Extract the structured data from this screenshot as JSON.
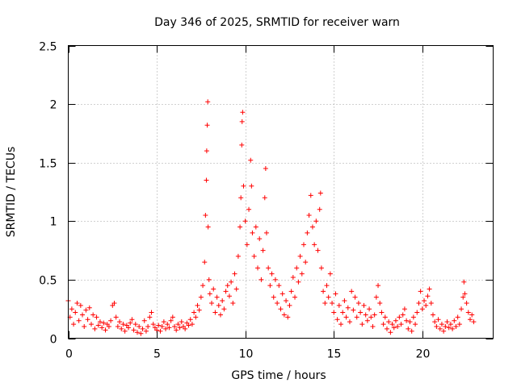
{
  "chart_data": {
    "type": "scatter",
    "title": "Day 346 of 2025, SRMTID for receiver warn",
    "xlabel": "GPS time / hours",
    "ylabel": "SRMTID / TECUs",
    "xlim": [
      0,
      24
    ],
    "ylim": [
      0,
      2.5
    ],
    "xticks": [
      0,
      5,
      10,
      15,
      20
    ],
    "xtick_labels": [
      "0",
      "5",
      "10",
      "15",
      "20"
    ],
    "yticks": [
      0,
      0.5,
      1,
      1.5,
      2,
      2.5
    ],
    "ytick_labels": [
      "0",
      "0.5",
      "1",
      "1.5",
      "2",
      "2.5"
    ],
    "grid": true,
    "marker": "+",
    "series_color": "#ff0000",
    "series": [
      {
        "name": "SRMTID",
        "points": [
          [
            0.0,
            0.32
          ],
          [
            0.1,
            0.18
          ],
          [
            0.2,
            0.25
          ],
          [
            0.3,
            0.12
          ],
          [
            0.4,
            0.22
          ],
          [
            0.5,
            0.3
          ],
          [
            0.6,
            0.15
          ],
          [
            0.7,
            0.28
          ],
          [
            0.8,
            0.2
          ],
          [
            0.9,
            0.1
          ],
          [
            1.0,
            0.24
          ],
          [
            1.1,
            0.16
          ],
          [
            1.2,
            0.26
          ],
          [
            1.3,
            0.12
          ],
          [
            1.4,
            0.2
          ],
          [
            1.5,
            0.08
          ],
          [
            1.6,
            0.18
          ],
          [
            1.7,
            0.11
          ],
          [
            1.8,
            0.14
          ],
          [
            1.9,
            0.09
          ],
          [
            2.0,
            0.13
          ],
          [
            2.1,
            0.07
          ],
          [
            2.2,
            0.12
          ],
          [
            2.3,
            0.1
          ],
          [
            2.4,
            0.15
          ],
          [
            2.5,
            0.28
          ],
          [
            2.6,
            0.3
          ],
          [
            2.7,
            0.18
          ],
          [
            2.8,
            0.1
          ],
          [
            2.9,
            0.14
          ],
          [
            3.0,
            0.08
          ],
          [
            3.1,
            0.12
          ],
          [
            3.2,
            0.06
          ],
          [
            3.3,
            0.11
          ],
          [
            3.4,
            0.09
          ],
          [
            3.5,
            0.13
          ],
          [
            3.6,
            0.16
          ],
          [
            3.7,
            0.07
          ],
          [
            3.8,
            0.12
          ],
          [
            3.9,
            0.05
          ],
          [
            4.0,
            0.1
          ],
          [
            4.1,
            0.04
          ],
          [
            4.2,
            0.08
          ],
          [
            4.3,
            0.15
          ],
          [
            4.4,
            0.06
          ],
          [
            4.5,
            0.1
          ],
          [
            4.6,
            0.18
          ],
          [
            4.7,
            0.22
          ],
          [
            4.8,
            0.12
          ],
          [
            4.9,
            0.09
          ],
          [
            5.0,
            0.07
          ],
          [
            5.1,
            0.11
          ],
          [
            5.2,
            0.06
          ],
          [
            5.3,
            0.1
          ],
          [
            5.4,
            0.14
          ],
          [
            5.5,
            0.08
          ],
          [
            5.6,
            0.12
          ],
          [
            5.7,
            0.09
          ],
          [
            5.8,
            0.15
          ],
          [
            5.9,
            0.18
          ],
          [
            6.0,
            0.1
          ],
          [
            6.1,
            0.07
          ],
          [
            6.2,
            0.12
          ],
          [
            6.3,
            0.09
          ],
          [
            6.4,
            0.14
          ],
          [
            6.5,
            0.1
          ],
          [
            6.6,
            0.08
          ],
          [
            6.7,
            0.13
          ],
          [
            6.8,
            0.11
          ],
          [
            6.9,
            0.16
          ],
          [
            7.0,
            0.12
          ],
          [
            7.1,
            0.22
          ],
          [
            7.2,
            0.18
          ],
          [
            7.3,
            0.28
          ],
          [
            7.4,
            0.24
          ],
          [
            7.5,
            0.35
          ],
          [
            7.6,
            0.45
          ],
          [
            7.7,
            0.65
          ],
          [
            7.75,
            1.05
          ],
          [
            7.8,
            1.35
          ],
          [
            7.82,
            1.6
          ],
          [
            7.85,
            1.82
          ],
          [
            7.88,
            2.02
          ],
          [
            7.9,
            0.95
          ],
          [
            7.95,
            0.5
          ],
          [
            8.0,
            0.38
          ],
          [
            8.1,
            0.3
          ],
          [
            8.2,
            0.42
          ],
          [
            8.3,
            0.22
          ],
          [
            8.4,
            0.35
          ],
          [
            8.5,
            0.28
          ],
          [
            8.6,
            0.2
          ],
          [
            8.7,
            0.32
          ],
          [
            8.8,
            0.25
          ],
          [
            8.9,
            0.4
          ],
          [
            9.0,
            0.45
          ],
          [
            9.1,
            0.36
          ],
          [
            9.2,
            0.48
          ],
          [
            9.3,
            0.3
          ],
          [
            9.4,
            0.55
          ],
          [
            9.5,
            0.42
          ],
          [
            9.6,
            0.7
          ],
          [
            9.7,
            0.95
          ],
          [
            9.75,
            1.2
          ],
          [
            9.8,
            1.65
          ],
          [
            9.82,
            1.85
          ],
          [
            9.85,
            1.93
          ],
          [
            9.9,
            1.3
          ],
          [
            10.0,
            1.0
          ],
          [
            10.1,
            0.8
          ],
          [
            10.2,
            1.1
          ],
          [
            10.3,
            1.52
          ],
          [
            10.35,
            1.3
          ],
          [
            10.4,
            0.9
          ],
          [
            10.5,
            0.7
          ],
          [
            10.6,
            0.95
          ],
          [
            10.7,
            0.6
          ],
          [
            10.8,
            0.85
          ],
          [
            10.9,
            0.5
          ],
          [
            11.0,
            0.75
          ],
          [
            11.1,
            1.2
          ],
          [
            11.15,
            1.45
          ],
          [
            11.2,
            0.9
          ],
          [
            11.3,
            0.6
          ],
          [
            11.4,
            0.45
          ],
          [
            11.5,
            0.55
          ],
          [
            11.6,
            0.35
          ],
          [
            11.7,
            0.5
          ],
          [
            11.8,
            0.3
          ],
          [
            11.9,
            0.45
          ],
          [
            12.0,
            0.25
          ],
          [
            12.1,
            0.38
          ],
          [
            12.2,
            0.2
          ],
          [
            12.3,
            0.32
          ],
          [
            12.4,
            0.18
          ],
          [
            12.5,
            0.28
          ],
          [
            12.6,
            0.4
          ],
          [
            12.7,
            0.52
          ],
          [
            12.8,
            0.35
          ],
          [
            12.9,
            0.6
          ],
          [
            13.0,
            0.48
          ],
          [
            13.1,
            0.7
          ],
          [
            13.2,
            0.55
          ],
          [
            13.3,
            0.8
          ],
          [
            13.4,
            0.65
          ],
          [
            13.5,
            0.9
          ],
          [
            13.6,
            1.05
          ],
          [
            13.7,
            1.22
          ],
          [
            13.8,
            0.95
          ],
          [
            13.9,
            0.8
          ],
          [
            14.0,
            1.0
          ],
          [
            14.1,
            0.75
          ],
          [
            14.2,
            1.1
          ],
          [
            14.25,
            1.24
          ],
          [
            14.3,
            0.6
          ],
          [
            14.4,
            0.4
          ],
          [
            14.5,
            0.3
          ],
          [
            14.6,
            0.45
          ],
          [
            14.7,
            0.35
          ],
          [
            14.8,
            0.55
          ],
          [
            14.9,
            0.3
          ],
          [
            15.0,
            0.22
          ],
          [
            15.1,
            0.38
          ],
          [
            15.2,
            0.16
          ],
          [
            15.3,
            0.28
          ],
          [
            15.4,
            0.12
          ],
          [
            15.5,
            0.22
          ],
          [
            15.6,
            0.32
          ],
          [
            15.7,
            0.18
          ],
          [
            15.8,
            0.26
          ],
          [
            15.9,
            0.14
          ],
          [
            16.0,
            0.4
          ],
          [
            16.1,
            0.24
          ],
          [
            16.2,
            0.35
          ],
          [
            16.3,
            0.18
          ],
          [
            16.4,
            0.3
          ],
          [
            16.5,
            0.22
          ],
          [
            16.6,
            0.12
          ],
          [
            16.7,
            0.28
          ],
          [
            16.8,
            0.2
          ],
          [
            16.9,
            0.15
          ],
          [
            17.0,
            0.25
          ],
          [
            17.1,
            0.18
          ],
          [
            17.2,
            0.1
          ],
          [
            17.3,
            0.2
          ],
          [
            17.4,
            0.35
          ],
          [
            17.5,
            0.45
          ],
          [
            17.6,
            0.3
          ],
          [
            17.7,
            0.22
          ],
          [
            17.8,
            0.12
          ],
          [
            17.9,
            0.18
          ],
          [
            18.0,
            0.08
          ],
          [
            18.1,
            0.14
          ],
          [
            18.2,
            0.05
          ],
          [
            18.3,
            0.12
          ],
          [
            18.4,
            0.09
          ],
          [
            18.5,
            0.15
          ],
          [
            18.6,
            0.1
          ],
          [
            18.7,
            0.18
          ],
          [
            18.8,
            0.12
          ],
          [
            18.9,
            0.2
          ],
          [
            19.0,
            0.25
          ],
          [
            19.1,
            0.15
          ],
          [
            19.2,
            0.08
          ],
          [
            19.3,
            0.14
          ],
          [
            19.4,
            0.06
          ],
          [
            19.5,
            0.18
          ],
          [
            19.6,
            0.12
          ],
          [
            19.7,
            0.22
          ],
          [
            19.8,
            0.3
          ],
          [
            19.9,
            0.4
          ],
          [
            20.0,
            0.25
          ],
          [
            20.1,
            0.32
          ],
          [
            20.2,
            0.28
          ],
          [
            20.3,
            0.36
          ],
          [
            20.4,
            0.42
          ],
          [
            20.5,
            0.3
          ],
          [
            20.6,
            0.2
          ],
          [
            20.7,
            0.14
          ],
          [
            20.8,
            0.1
          ],
          [
            20.9,
            0.16
          ],
          [
            21.0,
            0.08
          ],
          [
            21.1,
            0.12
          ],
          [
            21.2,
            0.06
          ],
          [
            21.3,
            0.1
          ],
          [
            21.4,
            0.14
          ],
          [
            21.5,
            0.09
          ],
          [
            21.6,
            0.12
          ],
          [
            21.7,
            0.08
          ],
          [
            21.8,
            0.15
          ],
          [
            21.9,
            0.1
          ],
          [
            22.0,
            0.18
          ],
          [
            22.1,
            0.12
          ],
          [
            22.2,
            0.25
          ],
          [
            22.3,
            0.35
          ],
          [
            22.35,
            0.48
          ],
          [
            22.4,
            0.38
          ],
          [
            22.5,
            0.3
          ],
          [
            22.6,
            0.22
          ],
          [
            22.7,
            0.16
          ],
          [
            22.8,
            0.2
          ],
          [
            22.9,
            0.14
          ]
        ]
      }
    ]
  }
}
